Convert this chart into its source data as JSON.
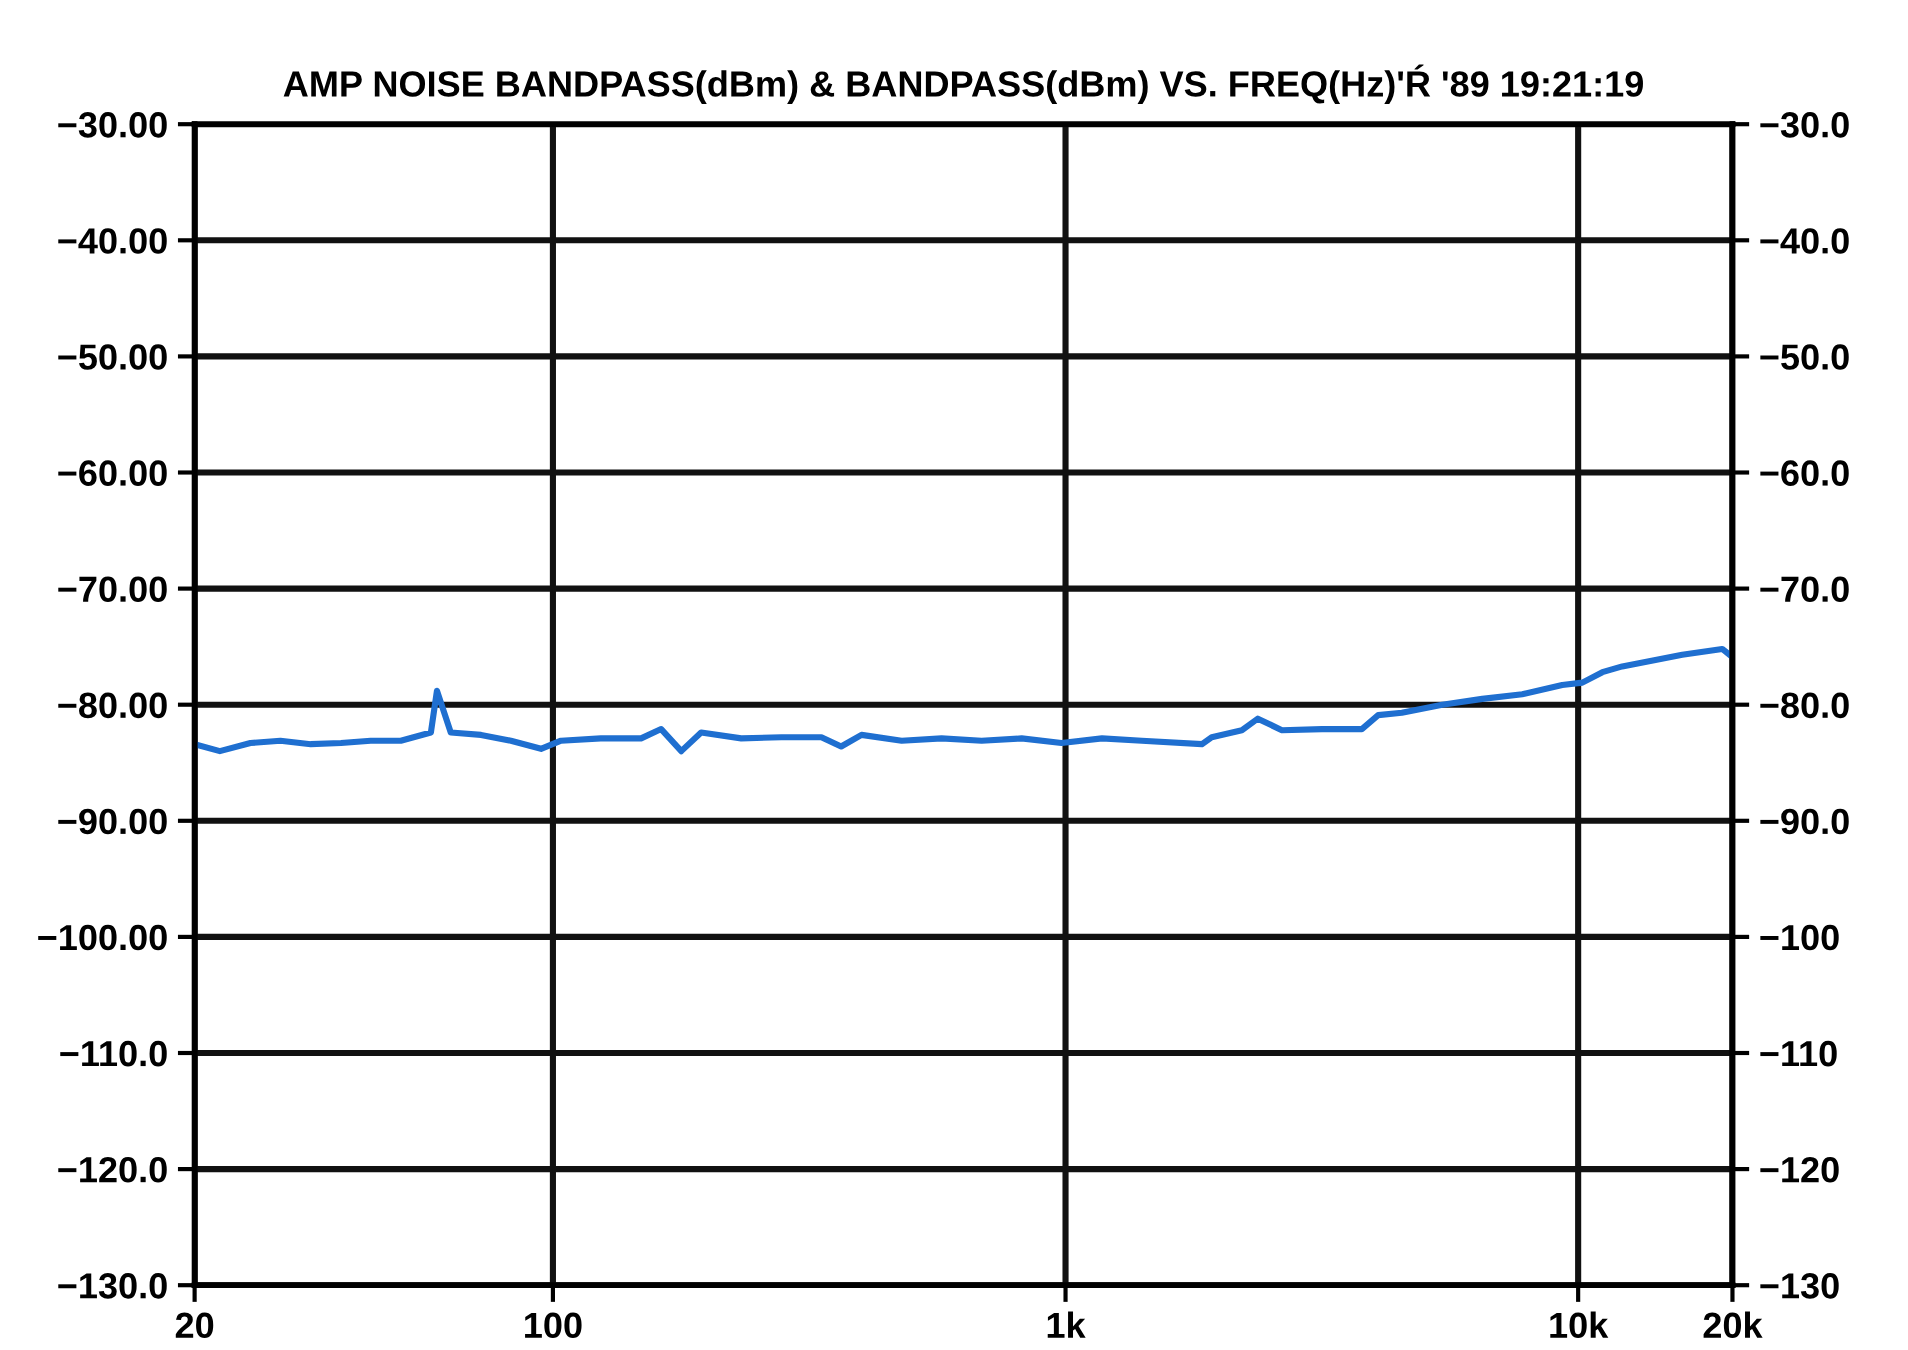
{
  "chart_data": {
    "type": "line",
    "title": "AMP NOISE BANDPASS(dBm) & BANDPASS(dBm) VS. FREQ(Hz)'Ŕ '89 19:21:19",
    "log": "x",
    "grid": true,
    "marker": "none",
    "line_style": "solid",
    "xlim": [
      20,
      20000
    ],
    "xticks": [
      {
        "value": 20,
        "label": "20"
      },
      {
        "value": 100,
        "label": "100"
      },
      {
        "value": 1000,
        "label": "1k"
      },
      {
        "value": 10000,
        "label": "10k"
      },
      {
        "value": 20000,
        "label": "20k"
      }
    ],
    "ylim": [
      -130,
      -30
    ],
    "yticks": [
      {
        "value": -30,
        "label": "−30.00"
      },
      {
        "value": -40,
        "label": "−40.00"
      },
      {
        "value": -50,
        "label": "−50.00"
      },
      {
        "value": -60,
        "label": "−60.00"
      },
      {
        "value": -70,
        "label": "−70.00"
      },
      {
        "value": -80,
        "label": "−80.00"
      },
      {
        "value": -90,
        "label": "−90.00"
      },
      {
        "value": -100,
        "label": "−100.00"
      },
      {
        "value": -110,
        "label": "−110.0"
      },
      {
        "value": -120,
        "label": "−120.0"
      },
      {
        "value": -130,
        "label": "−130.0"
      }
    ],
    "y2lim": [
      -130,
      -30
    ],
    "y2ticks": [
      {
        "value": -30,
        "label": "−30.0"
      },
      {
        "value": -40,
        "label": "−40.0"
      },
      {
        "value": -50,
        "label": "−50.0"
      },
      {
        "value": -60,
        "label": "−60.0"
      },
      {
        "value": -70,
        "label": "−70.0"
      },
      {
        "value": -80,
        "label": "−80.0"
      },
      {
        "value": -90,
        "label": "−90.0"
      },
      {
        "value": -100,
        "label": "−100"
      },
      {
        "value": -110,
        "label": "−110"
      },
      {
        "value": -120,
        "label": "−120"
      },
      {
        "value": -130,
        "label": "−130"
      }
    ],
    "series": [
      {
        "color": "#1f6fd0",
        "x": [
          20,
          22.4,
          25.7,
          29.4,
          33.7,
          38.6,
          44.1,
          50.5,
          57.8,
          59.4,
          63.2,
          72.4,
          82.8,
          94.8,
          103.7,
          124,
          148.6,
          162.6,
          178,
          194.6,
          233,
          279,
          334,
          365,
          400,
          479,
          573,
          686,
          821,
          982,
          1178,
          1409,
          1845,
          1928,
          2208,
          2372,
          2643,
          3164,
          3785,
          4073,
          4530,
          5430,
          6500,
          7780,
          9310,
          10190,
          11150,
          12190,
          15960,
          19100,
          20000
        ],
        "values": [
          -83.4,
          -84.0,
          -83.3,
          -83.1,
          -83.4,
          -83.3,
          -83.1,
          -83.1,
          -82.4,
          -78.8,
          -82.4,
          -82.6,
          -83.1,
          -83.8,
          -83.1,
          -82.9,
          -82.9,
          -82.1,
          -84.0,
          -82.4,
          -82.9,
          -82.8,
          -82.8,
          -83.6,
          -82.6,
          -83.1,
          -82.9,
          -83.1,
          -82.9,
          -83.3,
          -82.9,
          -83.1,
          -83.4,
          -82.8,
          -82.2,
          -81.2,
          -82.2,
          -82.1,
          -82.1,
          -80.9,
          -80.7,
          -80.0,
          -79.5,
          -79.1,
          -78.3,
          -78.1,
          -77.2,
          -76.7,
          -75.7,
          -75.2,
          -75.9
        ]
      }
    ]
  }
}
